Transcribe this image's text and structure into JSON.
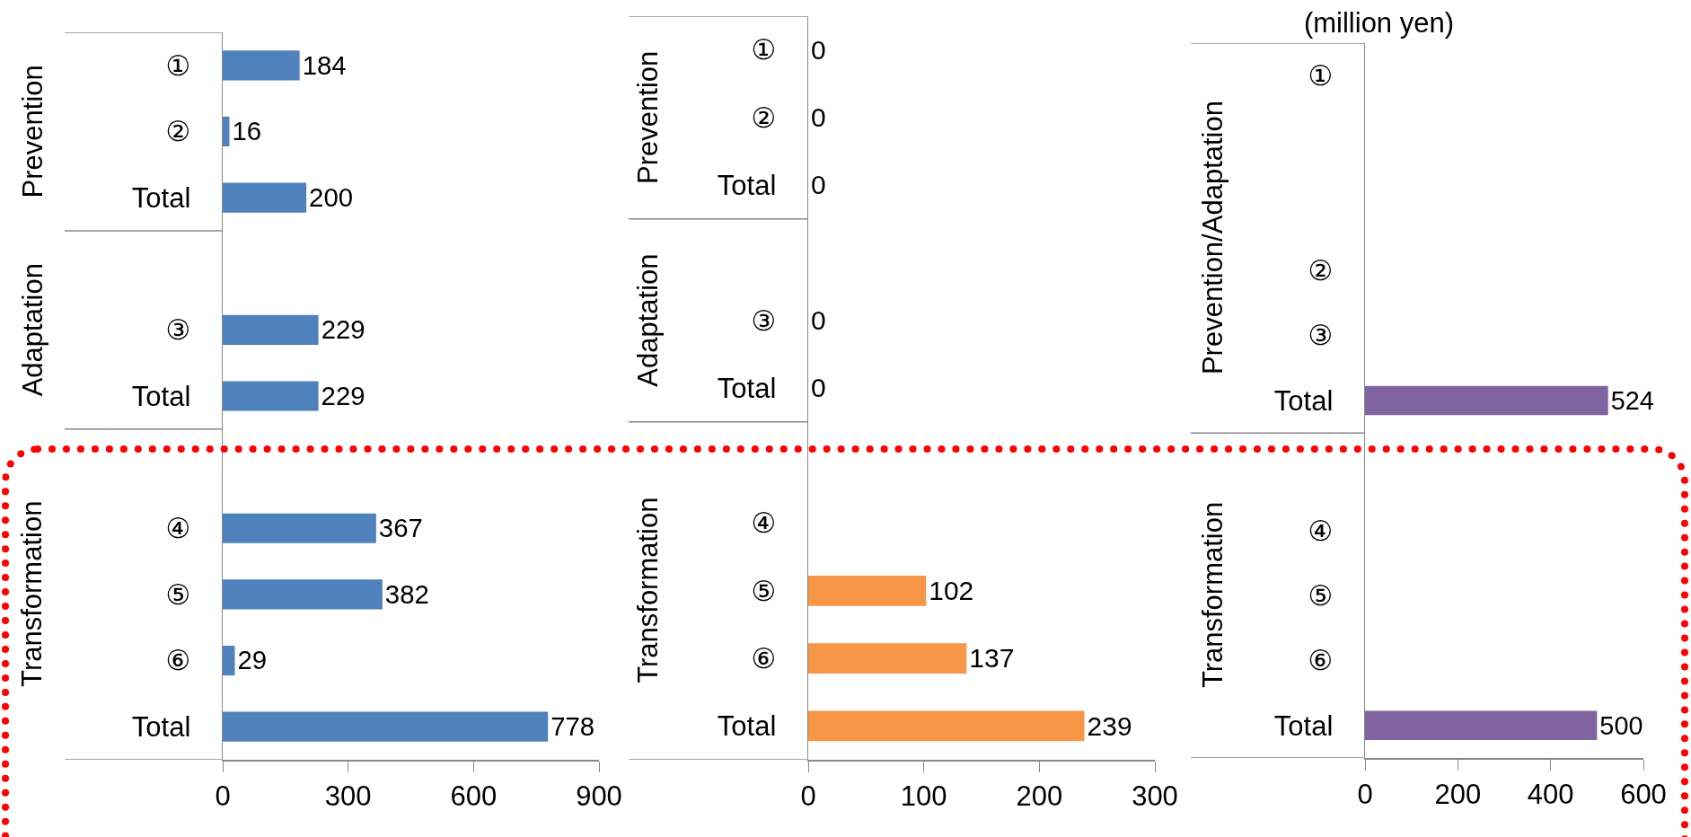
{
  "chart_data": [
    {
      "type": "bar",
      "orientation": "horizontal",
      "categories": [
        "①",
        "②",
        "Total",
        null,
        "③",
        "Total",
        null,
        "④",
        "⑤",
        "⑥",
        "Total"
      ],
      "values": [
        184,
        16,
        200,
        null,
        229,
        229,
        null,
        367,
        382,
        29,
        778
      ],
      "color": "#4f81bd",
      "data_labels": true,
      "xlim": [
        0,
        900
      ],
      "xticks": [
        0,
        300,
        600,
        900
      ],
      "annotations": [
        "Prevention",
        "Adaptation",
        "Transformation"
      ]
    },
    {
      "type": "bar",
      "orientation": "horizontal",
      "categories": [
        "①",
        "②",
        "Total",
        null,
        "③",
        "Total",
        null,
        "④",
        "⑤",
        "⑥",
        "Total"
      ],
      "values": [
        0,
        0,
        0,
        null,
        0,
        0,
        null,
        null,
        102,
        137,
        239
      ],
      "color": "#f79646",
      "data_labels": true,
      "xlim": [
        0,
        300
      ],
      "xticks": [
        0,
        100,
        200,
        300
      ],
      "annotations": [
        "Prevention",
        "Adaptation",
        "Transformation"
      ]
    },
    {
      "type": "bar",
      "orientation": "horizontal",
      "title": "(million yen)",
      "categories": [
        "①",
        null,
        null,
        "②",
        "③",
        "Total",
        null,
        "④",
        "⑤",
        "⑥",
        "Total"
      ],
      "values": [
        null,
        null,
        null,
        null,
        null,
        524,
        null,
        null,
        null,
        null,
        500
      ],
      "color": "#8064a2",
      "data_labels": true,
      "xlim": [
        0,
        600
      ],
      "xticks": [
        0,
        200,
        400,
        600
      ],
      "annotations": [
        "Prevention/Adaptation",
        "Transformation"
      ]
    }
  ]
}
